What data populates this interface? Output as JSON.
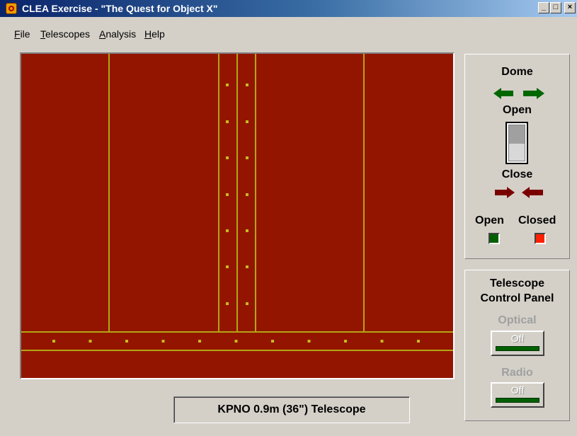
{
  "window": {
    "title": "CLEA Exercise - \"The Quest for Object X\"",
    "buttons": {
      "minimize": "_",
      "maximize": "□",
      "close": "×"
    }
  },
  "menu": [
    {
      "label": "File",
      "accel": "F",
      "rest": "ile"
    },
    {
      "label": "Telescopes",
      "accel": "T",
      "rest": "elescopes"
    },
    {
      "label": "Analysis",
      "accel": "A",
      "rest": "nalysis"
    },
    {
      "label": "Help",
      "accel": "H",
      "rest": "elp"
    }
  ],
  "scene": {
    "background_color": "#931500",
    "line_color": "#b3a514",
    "rivet_color": "#c8b820"
  },
  "dome": {
    "title": "Dome",
    "open_label": "Open",
    "close_label": "Close",
    "open_arrow_color": "#006600",
    "close_arrow_color": "#7a0000",
    "indicators": [
      {
        "label": "Open",
        "color": "#006000"
      },
      {
        "label": "Closed",
        "color": "#ff2000"
      }
    ]
  },
  "control_panel": {
    "title_line1": "Telescope",
    "title_line2": "Control Panel",
    "optical": {
      "label": "Optical",
      "state": "Off"
    },
    "radio": {
      "label": "Radio",
      "state": "Off"
    }
  },
  "status": {
    "telescope_name": "KPNO 0.9m (36\") Telescope"
  }
}
